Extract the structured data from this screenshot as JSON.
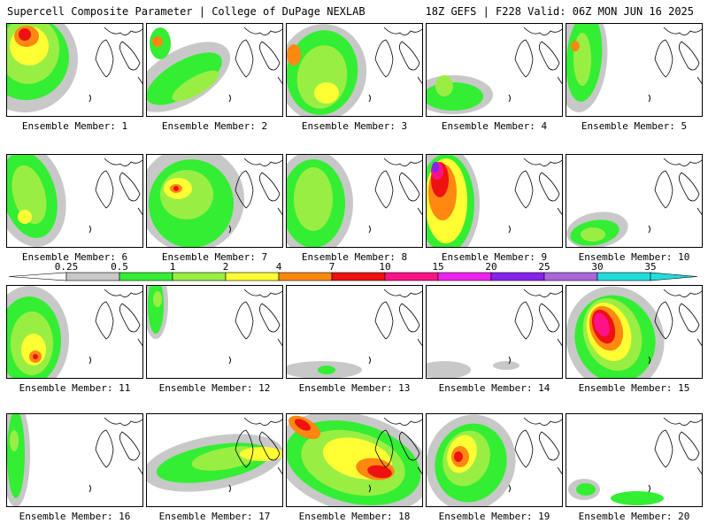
{
  "header": {
    "title": "Supercell Composite Parameter | College of DuPage NEXLAB",
    "run": "18Z GEFS | F228 Valid: 06Z MON JUN 16 2025"
  },
  "colors": {
    "levels": [
      "#c8c8c8",
      "#33ee33",
      "#99ee44",
      "#ffff33",
      "#ff8811",
      "#ee1111",
      "#ff1188",
      "#ee22ee",
      "#8822ee",
      "#aa66dd",
      "#22dddd"
    ],
    "outline": "#000000"
  },
  "colorbar": {
    "ticks": [
      "0.25",
      "0.5",
      "1",
      "2",
      "4",
      "7",
      "10",
      "15",
      "20",
      "25",
      "30",
      "35"
    ]
  },
  "panels": [
    {
      "label": "Ensemble Member: 1"
    },
    {
      "label": "Ensemble Member: 2"
    },
    {
      "label": "Ensemble Member: 3"
    },
    {
      "label": "Ensemble Member: 4"
    },
    {
      "label": "Ensemble Member: 5"
    },
    {
      "label": "Ensemble Member: 6"
    },
    {
      "label": "Ensemble Member: 7"
    },
    {
      "label": "Ensemble Member: 8"
    },
    {
      "label": "Ensemble Member: 9"
    },
    {
      "label": "Ensemble Member: 10"
    },
    {
      "label": "Ensemble Member: 11"
    },
    {
      "label": "Ensemble Member: 12"
    },
    {
      "label": "Ensemble Member: 13"
    },
    {
      "label": "Ensemble Member: 14"
    },
    {
      "label": "Ensemble Member: 15"
    },
    {
      "label": "Ensemble Member: 16"
    },
    {
      "label": "Ensemble Member: 17"
    },
    {
      "label": "Ensemble Member: 18"
    },
    {
      "label": "Ensemble Member: 19"
    },
    {
      "label": "Ensemble Member: 20"
    }
  ]
}
